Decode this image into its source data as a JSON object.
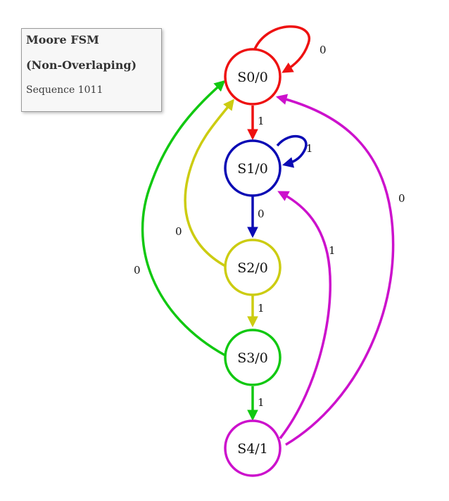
{
  "legend": {
    "title_line1": "Moore FSM",
    "title_line2": "(Non-Overlaping)",
    "subtitle": "Sequence 1011"
  },
  "colors": {
    "s0": "#ee1111",
    "s1": "#0a0ab4",
    "s2": "#cccc11",
    "s3": "#11c811",
    "s4": "#cc11cc"
  },
  "states": {
    "s0": "S0/0",
    "s1": "S1/0",
    "s2": "S2/0",
    "s3": "S3/0",
    "s4": "S4/1"
  },
  "transitions": {
    "s0_self": "0",
    "s0_to_s1": "1",
    "s1_self": "1",
    "s1_to_s2": "0",
    "s2_to_s0": "0",
    "s2_to_s3": "1",
    "s3_to_s0": "0",
    "s3_to_s4": "1",
    "s4_to_s1": "1",
    "s4_to_s0": "0"
  }
}
